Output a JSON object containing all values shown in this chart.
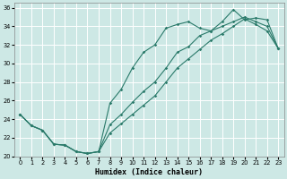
{
  "xlabel": "Humidex (Indice chaleur)",
  "background_color": "#cde8e5",
  "grid_color": "#ffffff",
  "line_color": "#2a7a6a",
  "xlim": [
    -0.5,
    23.5
  ],
  "ylim": [
    20,
    36.5
  ],
  "xticks": [
    0,
    1,
    2,
    3,
    4,
    5,
    6,
    7,
    8,
    9,
    10,
    11,
    12,
    13,
    14,
    15,
    16,
    17,
    18,
    19,
    20,
    21,
    22,
    23
  ],
  "yticks": [
    20,
    22,
    24,
    26,
    28,
    30,
    32,
    34,
    36
  ],
  "line1_x": [
    0,
    1,
    2,
    3,
    4,
    5,
    6,
    7,
    8,
    9,
    10,
    11,
    12,
    13,
    14,
    15,
    16,
    17,
    18,
    19,
    20,
    21,
    22,
    23
  ],
  "line1_y": [
    24.5,
    23.3,
    22.8,
    21.3,
    21.2,
    20.5,
    20.3,
    20.5,
    25.7,
    27.2,
    29.5,
    31.2,
    32.0,
    33.8,
    34.2,
    34.5,
    33.8,
    33.5,
    34.5,
    35.8,
    34.7,
    34.9,
    34.7,
    31.6
  ],
  "line2_x": [
    0,
    1,
    2,
    3,
    4,
    5,
    6,
    7,
    8,
    9,
    10,
    11,
    12,
    13,
    14,
    15,
    16,
    17,
    18,
    19,
    20,
    21,
    22,
    23
  ],
  "line2_y": [
    24.5,
    23.3,
    22.8,
    21.3,
    21.2,
    20.5,
    20.3,
    20.5,
    23.4,
    24.5,
    25.8,
    27.0,
    28.0,
    29.5,
    31.2,
    31.8,
    33.0,
    33.5,
    34.0,
    34.5,
    35.0,
    34.5,
    34.0,
    31.6
  ],
  "line3_x": [
    0,
    1,
    2,
    3,
    4,
    5,
    6,
    7,
    8,
    9,
    10,
    11,
    12,
    13,
    14,
    15,
    16,
    17,
    18,
    19,
    20,
    21,
    22,
    23
  ],
  "line3_y": [
    24.5,
    23.3,
    22.8,
    21.3,
    21.2,
    20.5,
    20.3,
    20.5,
    22.5,
    23.5,
    24.5,
    25.5,
    26.5,
    28.0,
    29.5,
    30.5,
    31.5,
    32.5,
    33.2,
    34.0,
    34.8,
    34.2,
    33.5,
    31.6
  ]
}
